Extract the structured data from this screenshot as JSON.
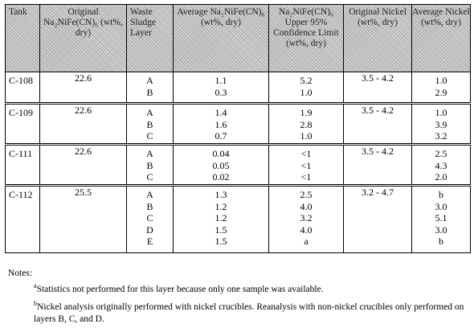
{
  "headers": {
    "tank": "Tank",
    "orig_na": "Original Na₂NiFe(CN)₆ (wt%, dry)",
    "layer": "Waste Sludge Layer",
    "avg_na": "Average Na₂NiFe(CN)₆ (wt%, dry)",
    "upper": "Na₂NiFe(CN)₆ Upper 95% Confidence Limit (wt%, dry)",
    "orig_ni": "Original Nickel (wt%, dry)",
    "avg_ni": "Average Nickel (wt%, dry)"
  },
  "rows": [
    {
      "tank": "C-108",
      "orig_na": "22.6",
      "layers": [
        "A",
        "B"
      ],
      "avg_na": [
        "1.1",
        "0.3"
      ],
      "upper": [
        "5.2",
        "1.0"
      ],
      "orig_ni": "3.5 - 4.2",
      "avg_ni": [
        "1.0",
        "2.9"
      ]
    },
    {
      "tank": "C-109",
      "orig_na": "22.6",
      "layers": [
        "A",
        "B",
        "C"
      ],
      "avg_na": [
        "1.4",
        "1.6",
        "0.7"
      ],
      "upper": [
        "1.9",
        "2.8",
        "1.0"
      ],
      "orig_ni": "3.5 - 4.2",
      "avg_ni": [
        "1.0",
        "3.9",
        "3.2"
      ]
    },
    {
      "tank": "C-111",
      "orig_na": "22.6",
      "layers": [
        "A",
        "B",
        "C"
      ],
      "avg_na": [
        "0.04",
        "0.05",
        "0.02"
      ],
      "upper": [
        "<1",
        "<1",
        "<1"
      ],
      "orig_ni": "3.5 - 4.2",
      "avg_ni": [
        "2.5",
        "4.3",
        "2.0"
      ]
    },
    {
      "tank": "C-112",
      "orig_na": "25.5",
      "layers": [
        "A",
        "B",
        "C",
        "D",
        "E"
      ],
      "avg_na": [
        "1.3",
        "1.2",
        "1.2",
        "1.5",
        "1.5"
      ],
      "upper": [
        "2.5",
        "4.0",
        "3.2",
        "4.0",
        "a"
      ],
      "orig_ni": "3.2 - 4.7",
      "avg_ni": [
        "b",
        "3.0",
        "5.1",
        "3.0",
        "b"
      ]
    }
  ],
  "notes": {
    "heading": "Notes:",
    "a_mark": "a",
    "a_text": "Statistics not performed for this layer because only one sample was available.",
    "b_mark": "b",
    "b_text": "Nickel analysis originally performed with nickel crucibles.  Reanalysis with non-nickel crucibles only performed on layers B, C, and D."
  }
}
